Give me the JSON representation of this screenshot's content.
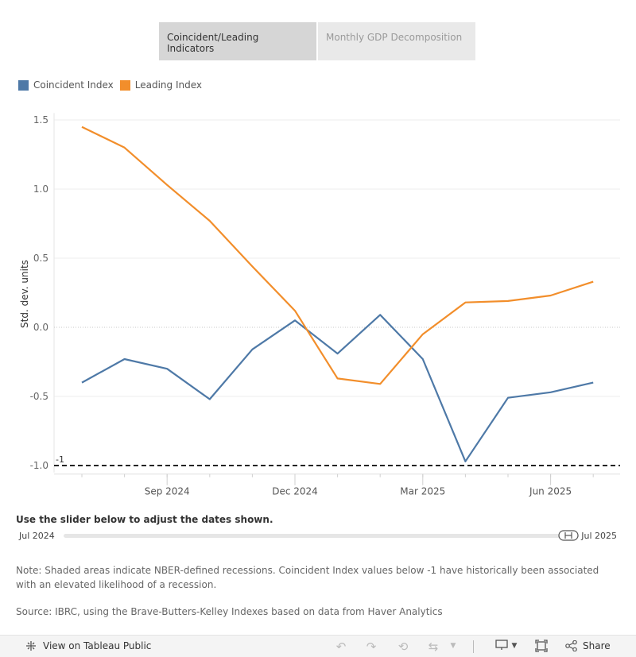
{
  "tabs": [
    {
      "label": "Coincident/Leading Indicators",
      "active": true
    },
    {
      "label": "Monthly GDP Decomposition",
      "active": false
    }
  ],
  "legend": [
    {
      "label": "Coincident Index",
      "color": "#4e79a7"
    },
    {
      "label": "Leading Index",
      "color": "#f28e2b"
    }
  ],
  "chart_data": {
    "type": "line",
    "ylabel": "Std. dev. units",
    "xlabel": "",
    "ylim": [
      -1.05,
      1.55
    ],
    "yticks": [
      1.5,
      1.0,
      0.5,
      0.0,
      -0.5,
      -1.0
    ],
    "ytick_labels": [
      "1.5",
      "1.0",
      "0.5",
      "0.0",
      "-0.5",
      "-1.0"
    ],
    "x": [
      "2024-07",
      "2024-08",
      "2024-09",
      "2024-10",
      "2024-11",
      "2024-12",
      "2025-01",
      "2025-02",
      "2025-03",
      "2025-04",
      "2025-05",
      "2025-06",
      "2025-07"
    ],
    "xtick_labels": [
      {
        "label": "Sep 2024",
        "month": "2024-09"
      },
      {
        "label": "Dec 2024",
        "month": "2024-12"
      },
      {
        "label": "Mar 2025",
        "month": "2025-03"
      },
      {
        "label": "Jun 2025",
        "month": "2025-06"
      }
    ],
    "series": [
      {
        "name": "Coincident Index",
        "color": "#4e79a7",
        "values": [
          -0.4,
          -0.23,
          -0.3,
          -0.52,
          -0.16,
          0.05,
          -0.19,
          0.09,
          -0.23,
          -0.97,
          -0.51,
          -0.47,
          -0.4
        ]
      },
      {
        "name": "Leading Index",
        "color": "#f28e2b",
        "values": [
          1.45,
          1.3,
          1.03,
          0.77,
          0.44,
          0.12,
          -0.37,
          -0.41,
          -0.05,
          0.18,
          0.19,
          0.23,
          0.33
        ]
      }
    ],
    "reference_line": {
      "value": -1,
      "label": "-1",
      "style": "dashed",
      "color": "#222222"
    },
    "zero_line": {
      "value": 0,
      "style": "dotted"
    }
  },
  "slider": {
    "title": "Use the slider below to adjust the dates shown.",
    "start_label": "Jul 2024",
    "end_label": "Jul 2025"
  },
  "note": "Note: Shaded areas indicate NBER-defined recessions. Coincident Index values below -1 have historically been associated with an elevated likelihood of a recession.",
  "source": "Source: IBRC, using the Brave-Butters-Kelley Indexes based on data from Haver Analytics",
  "footer": {
    "view_label": "View on Tableau Public",
    "share_label": "Share"
  }
}
